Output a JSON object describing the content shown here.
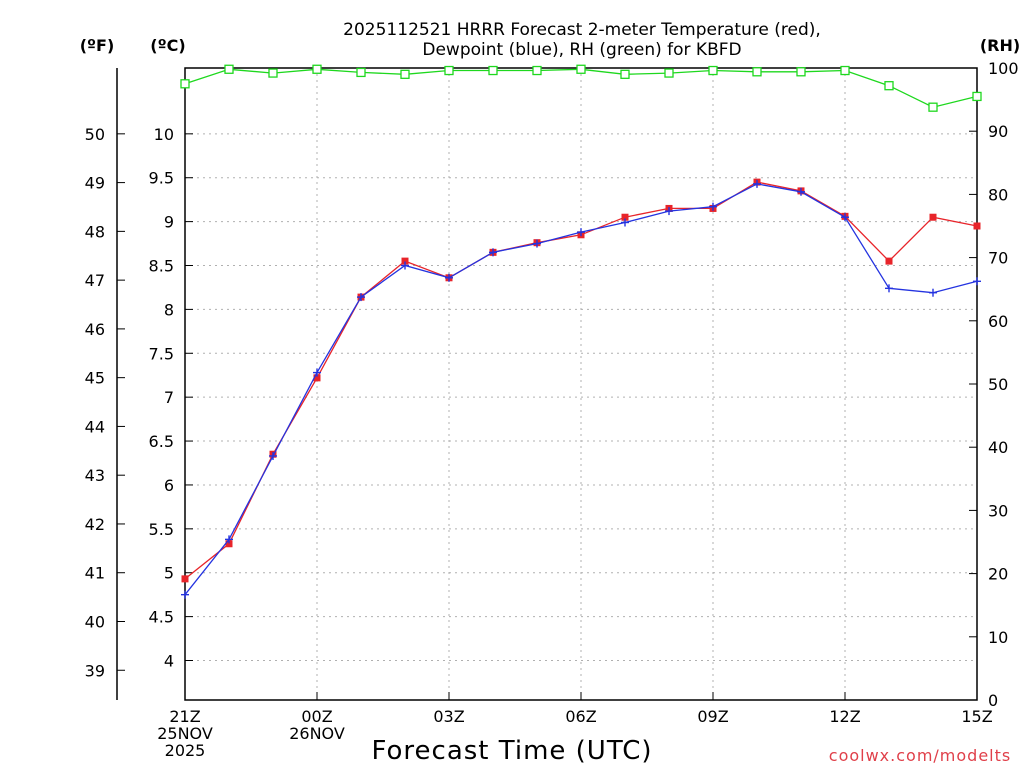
{
  "chart_data": {
    "type": "line",
    "title_lines": [
      "2025112521 HRRR Forecast 2-meter Temperature (red),",
      "Dewpoint (blue), RH (green) for KBFD"
    ],
    "xlabel": "Forecast Time (UTC)",
    "credit": "coolwx.com/modelts",
    "units": {
      "fahrenheit": "(ºF)",
      "celsius": "(ºC)",
      "rh": "(RH)"
    },
    "x_hours": [
      0,
      1,
      2,
      3,
      4,
      5,
      6,
      7,
      8,
      9,
      10,
      11,
      12,
      13,
      14,
      15,
      16,
      17,
      18
    ],
    "x_ticks": [
      {
        "hour": 0,
        "lines": [
          "21Z",
          "25NOV",
          "2025"
        ]
      },
      {
        "hour": 3,
        "lines": [
          "00Z",
          "26NOV"
        ]
      },
      {
        "hour": 6,
        "lines": [
          "03Z"
        ]
      },
      {
        "hour": 9,
        "lines": [
          "06Z"
        ]
      },
      {
        "hour": 12,
        "lines": [
          "09Z"
        ]
      },
      {
        "hour": 15,
        "lines": [
          "12Z"
        ]
      },
      {
        "hour": 18,
        "lines": [
          "15Z"
        ]
      }
    ],
    "celsius_range": [
      3.55,
      10.75
    ],
    "celsius_ticks": [
      "4",
      "4.5",
      "5",
      "5.5",
      "6",
      "6.5",
      "7",
      "7.5",
      "8",
      "8.5",
      "9",
      "9.5",
      "10"
    ],
    "fahrenheit_ticks": [
      "39",
      "40",
      "41",
      "42",
      "43",
      "44",
      "45",
      "46",
      "47",
      "48",
      "49",
      "50"
    ],
    "rh_range": [
      0,
      100
    ],
    "rh_ticks": [
      "0",
      "10",
      "20",
      "30",
      "40",
      "50",
      "60",
      "70",
      "80",
      "90",
      "100"
    ],
    "series": [
      {
        "name": "Temperature",
        "unit": "C",
        "color": "#e8242a",
        "marker": "filled-square",
        "values": [
          4.93,
          5.33,
          6.35,
          7.22,
          8.14,
          8.55,
          8.36,
          8.65,
          8.76,
          8.85,
          9.05,
          9.15,
          9.15,
          9.45,
          9.35,
          9.06,
          8.55,
          9.05,
          8.95
        ]
      },
      {
        "name": "Dewpoint",
        "unit": "C",
        "color": "#2433e0",
        "marker": "plus",
        "values": [
          4.75,
          5.38,
          6.33,
          7.28,
          8.14,
          8.5,
          8.36,
          8.65,
          8.75,
          8.88,
          8.99,
          9.12,
          9.17,
          9.43,
          9.34,
          9.05,
          8.24,
          8.19,
          8.32
        ]
      },
      {
        "name": "Relative Humidity",
        "unit": "%",
        "color": "#1ed81e",
        "marker": "open-square",
        "values": [
          97.5,
          99.8,
          99.2,
          99.8,
          99.3,
          99.0,
          99.6,
          99.6,
          99.6,
          99.8,
          99.0,
          99.2,
          99.6,
          99.4,
          99.4,
          99.6,
          97.2,
          93.8,
          95.5
        ]
      }
    ]
  }
}
